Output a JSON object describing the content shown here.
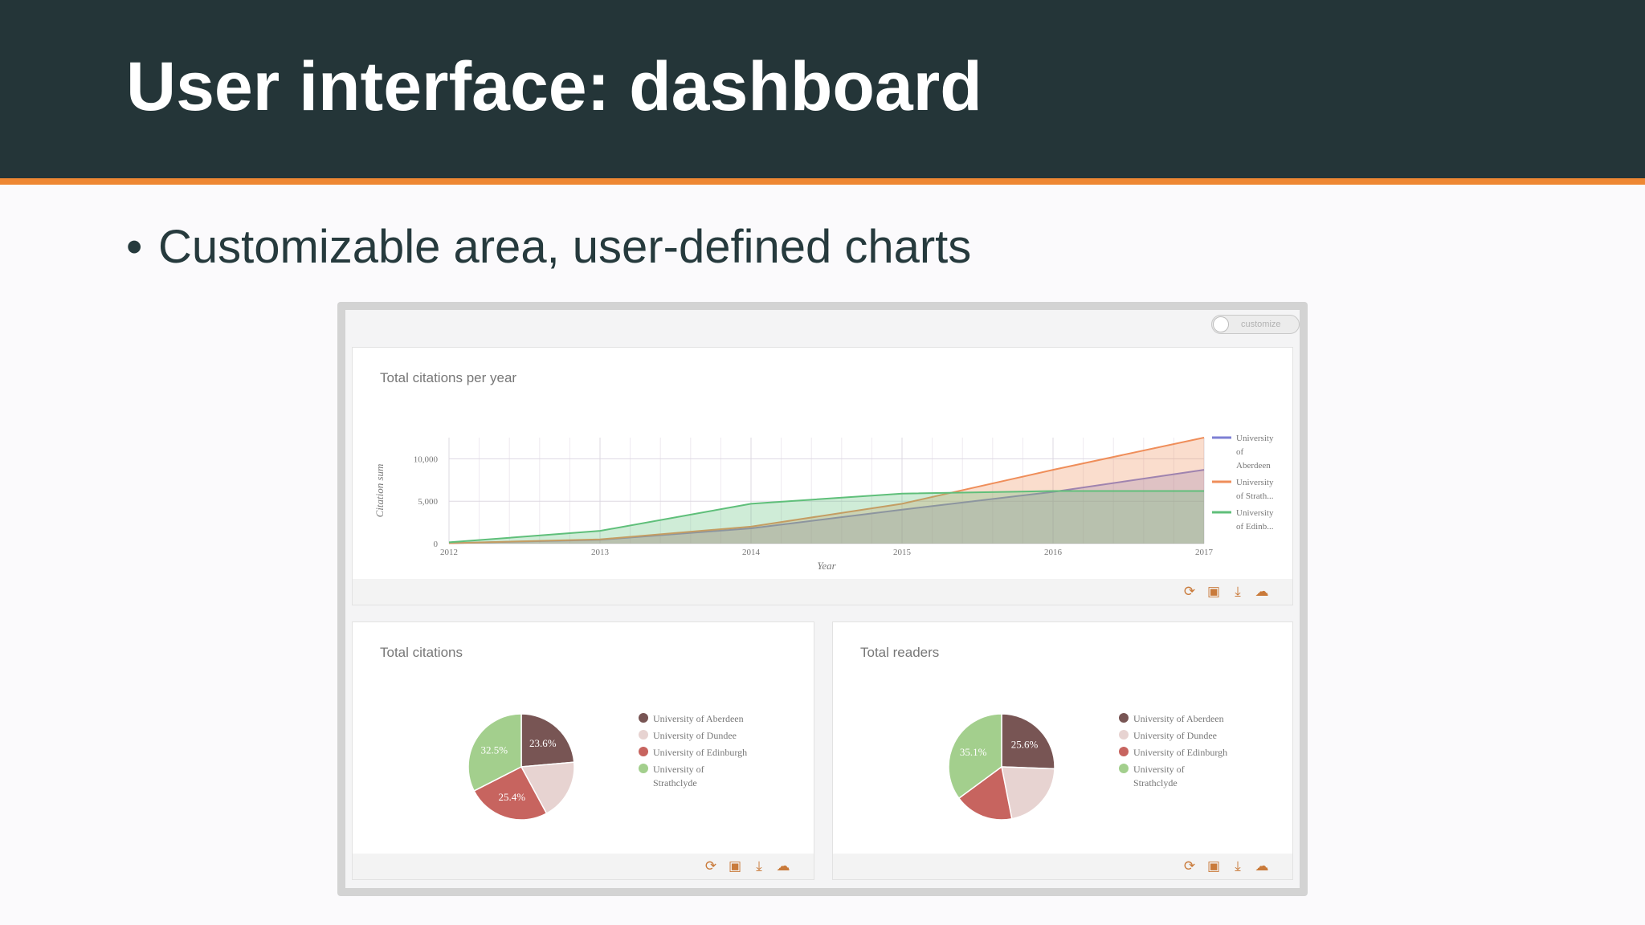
{
  "slide": {
    "title": "User interface: dashboard",
    "bullet_marker": "•",
    "bullet": "Customizable area, user-defined charts"
  },
  "dashboard": {
    "customize_label": "customize",
    "tools": [
      {
        "icon": "refresh-icon",
        "glyph": "⟳"
      },
      {
        "icon": "image-icon",
        "glyph": "▣"
      },
      {
        "icon": "download-icon",
        "glyph": "⤓"
      },
      {
        "icon": "cloud-icon",
        "glyph": "☁"
      }
    ],
    "line_card": {
      "title": "Total citations per year"
    },
    "pie_card_1": {
      "title": "Total citations"
    },
    "pie_card_2": {
      "title": "Total readers"
    }
  },
  "colors": {
    "header_bg": "#243538",
    "accent_stripe": "#ee8733",
    "aberdeen_line": "#7d7fd4",
    "strathclyde_line": "#ef8e5a",
    "edinburgh_line": "#5fbf7a",
    "pie_aberdeen": "#785554",
    "pie_dundee": "#e7d3d1",
    "pie_edinburgh": "#c7645f",
    "pie_strathclyde": "#a3cf8d"
  },
  "chart_data": [
    {
      "type": "area",
      "title": "Total citations per year",
      "xlabel": "Year",
      "ylabel": "Citation sum",
      "x": [
        2012,
        2013,
        2014,
        2015,
        2016,
        2017
      ],
      "y_ticks": [
        "0",
        "5,000",
        "10,000"
      ],
      "ylim": [
        0,
        12500
      ],
      "grid": true,
      "legend_position": "right",
      "series": [
        {
          "name": "University of Aberdeen",
          "color": "#7d7fd4",
          "values": [
            50,
            450,
            1800,
            4000,
            6100,
            8700
          ]
        },
        {
          "name": "University of Strath...",
          "color": "#ef8e5a",
          "values": [
            50,
            500,
            2000,
            4700,
            8700,
            12500
          ]
        },
        {
          "name": "University of Edinb...",
          "color": "#5fbf7a",
          "values": [
            150,
            1500,
            4700,
            5900,
            6200,
            6200
          ]
        }
      ]
    },
    {
      "type": "pie",
      "title": "Total citations",
      "legend_position": "right",
      "labels": [
        "University of Aberdeen",
        "University of Dundee",
        "University of Edinburgh",
        "University of Strathclyde"
      ],
      "values": [
        23.6,
        18.5,
        25.4,
        32.5
      ],
      "value_labels": [
        "23.6%",
        "",
        "25.4%",
        "32.5%"
      ],
      "colors": [
        "#785554",
        "#e7d3d1",
        "#c7645f",
        "#a3cf8d"
      ]
    },
    {
      "type": "pie",
      "title": "Total readers",
      "legend_position": "right",
      "labels": [
        "University of Aberdeen",
        "University of Dundee",
        "University of Edinburgh",
        "University of Strathclyde"
      ],
      "values": [
        25.6,
        21.3,
        18.0,
        35.1
      ],
      "value_labels": [
        "25.6%",
        "",
        "",
        "35.1%"
      ],
      "colors": [
        "#785554",
        "#e7d3d1",
        "#c7645f",
        "#a3cf8d"
      ]
    }
  ]
}
